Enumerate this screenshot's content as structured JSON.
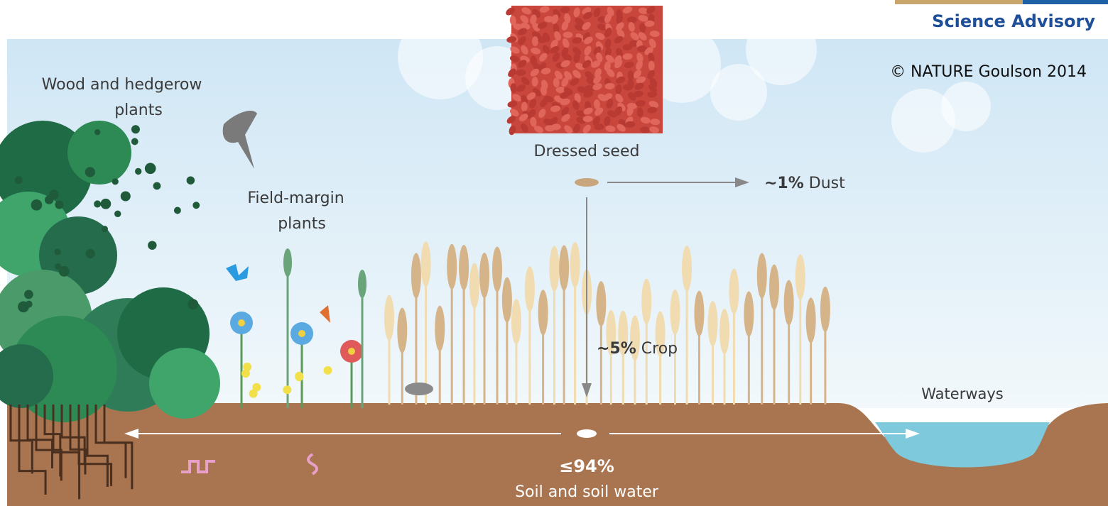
{
  "header": {
    "brand": "Science Advisory",
    "credit": "© NATURE Goulson 2014"
  },
  "labels": {
    "wood_hedgerow": [
      "Wood and hedgerow",
      "plants"
    ],
    "field_margin": [
      "Field-margin",
      "plants"
    ],
    "dressed_seed": "Dressed seed",
    "dust": {
      "share": "~1%",
      "name": "Dust"
    },
    "crop": {
      "share": "~5%",
      "name": "Crop"
    },
    "soil": {
      "share": "≤94%",
      "name": "Soil and soil water"
    },
    "waterways": "Waterways"
  }
}
